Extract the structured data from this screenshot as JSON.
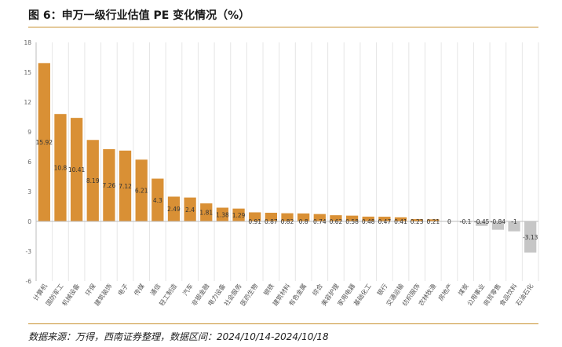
{
  "figure": {
    "title": "图 6：申万一级行业估值 PE 变化情况（%）",
    "source": "数据来源：万得，西南证券整理，数据区间：2024/10/14-2024/10/18"
  },
  "colors": {
    "positive": "#d99035",
    "negative": "#c6c6c6",
    "grid": "#e6e6e6",
    "axis": "#bdbdbd",
    "rule": "#c8902e"
  },
  "chart_data": {
    "type": "bar",
    "title": "申万一级行业估值 PE 变化情况（%）",
    "xlabel": "",
    "ylabel": "",
    "ylim": [
      -6,
      18
    ],
    "yticks": [
      -6,
      -3,
      0,
      3,
      6,
      9,
      12,
      15,
      18
    ],
    "grid": "vertical",
    "categories": [
      "计算机",
      "国防军工",
      "机械设备",
      "环保",
      "建筑装饰",
      "电子",
      "传媒",
      "通信",
      "轻工制造",
      "汽车",
      "非银金融",
      "电力设备",
      "社会服务",
      "医药生物",
      "钢铁",
      "建筑材料",
      "有色金属",
      "综合",
      "美容护理",
      "家用电器",
      "基础化工",
      "银行",
      "交通运输",
      "纺织服饰",
      "农林牧渔",
      "房地产",
      "煤炭",
      "公用事业",
      "商贸零售",
      "食品饮料",
      "石油石化"
    ],
    "values": [
      15.92,
      10.8,
      10.41,
      8.19,
      7.26,
      7.12,
      6.21,
      4.3,
      2.49,
      2.4,
      1.81,
      1.38,
      1.29,
      0.91,
      0.87,
      0.82,
      0.8,
      0.74,
      0.62,
      0.58,
      0.48,
      0.47,
      0.41,
      0.23,
      0.21,
      0,
      -0.1,
      -0.45,
      -0.84,
      -1,
      -3.13
    ],
    "data_labels": [
      "15.92",
      "10.8",
      "10.41",
      "8.19",
      "7.26",
      "7.12",
      "6.21",
      "4.3",
      "2.49",
      "2.4",
      "1.81",
      "1.38",
      "1.29",
      "0.91",
      "0.87",
      "0.82",
      "0.8",
      "0.74",
      "0.62",
      "0.58",
      "0.48",
      "0.47",
      "0.41",
      "0.23",
      "0.21",
      "0",
      "-0.1",
      "-0.45",
      "-0.84",
      "-1",
      "-3.13"
    ]
  }
}
